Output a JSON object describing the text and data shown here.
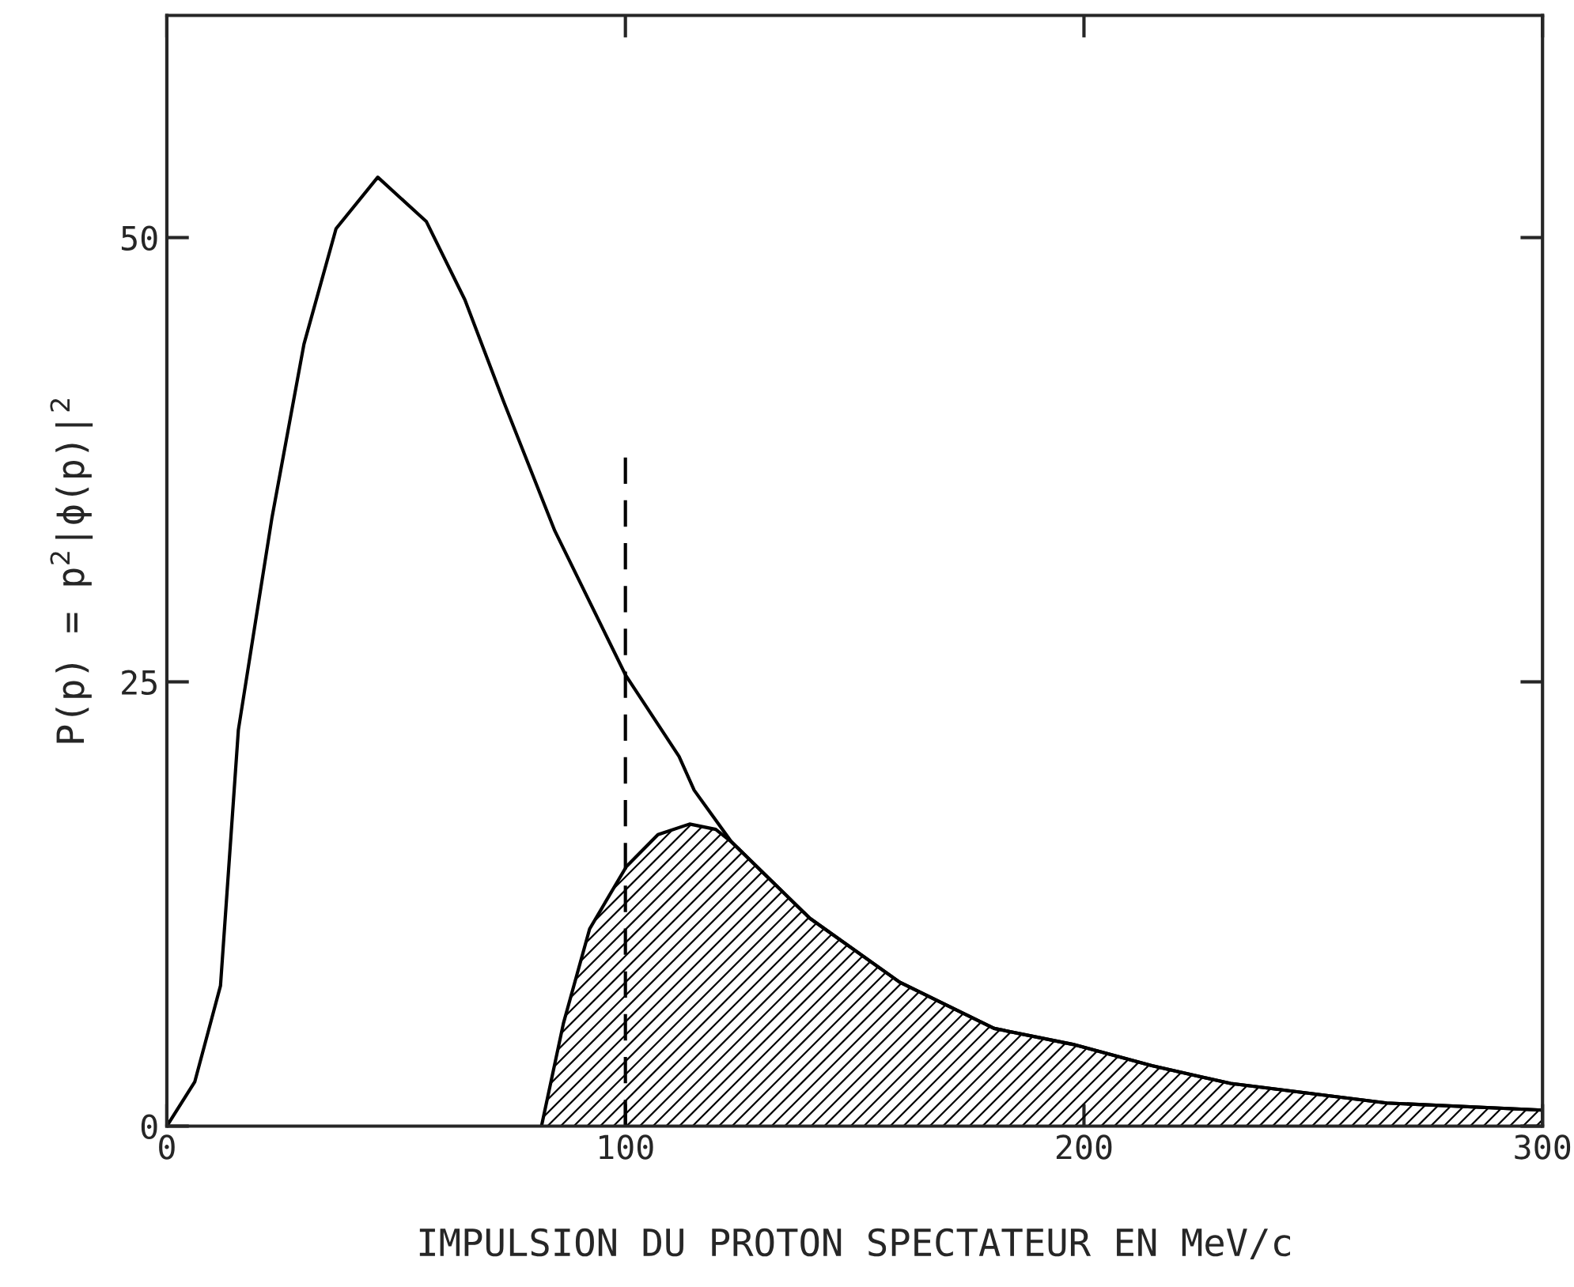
{
  "chart_data": {
    "type": "line",
    "xlabel": "IMPULSION DU PROTON SPECTATEUR EN MeV/c",
    "ylabel": "P(p) = p$^{2}$|ϕ(p)|$^{2}$",
    "xlim": [
      0,
      300
    ],
    "xticks": [
      0,
      100,
      200,
      300
    ],
    "ylim": [
      0,
      62.5
    ],
    "yticks": [
      0,
      25,
      50
    ],
    "grid": false,
    "legend": false,
    "series": [
      {
        "color": "#000000",
        "x": [
          0,
          6.1,
          11.7,
          15.6,
          22.9,
          29.9,
          36.9,
          46,
          56.6,
          65,
          73.4,
          84.6,
          100,
          111.7,
          115,
          123.1,
          140.2,
          159.8,
          180.4,
          197.6,
          214.8,
          232,
          266,
          300
        ],
        "values": [
          0,
          2.5,
          7.9,
          22.3,
          34.2,
          44,
          50.5,
          53.4,
          50.9,
          46.5,
          40.8,
          33.5,
          25.4,
          20.8,
          18.9,
          16,
          11.7,
          8.1,
          5.5,
          4.6,
          3.4,
          2.4,
          1.3,
          0.9
        ]
      },
      {
        "type": "area",
        "color": "#000000",
        "x": [
          81.7,
          86.5,
          92.2,
          100.2,
          107.1,
          114,
          119.7,
          123.1,
          140.2,
          159.8,
          180.4,
          197.6,
          214.8,
          232,
          266,
          300
        ],
        "values": [
          0,
          5.8,
          11.1,
          14.6,
          16.4,
          17,
          16.7,
          16,
          11.7,
          8.1,
          5.5,
          4.6,
          3.4,
          2.4,
          1.3,
          0.9
        ]
      },
      {
        "color": "#000000",
        "line_style": "dashed",
        "x": [
          100,
          100
        ],
        "values": [
          0,
          38
        ]
      }
    ]
  }
}
